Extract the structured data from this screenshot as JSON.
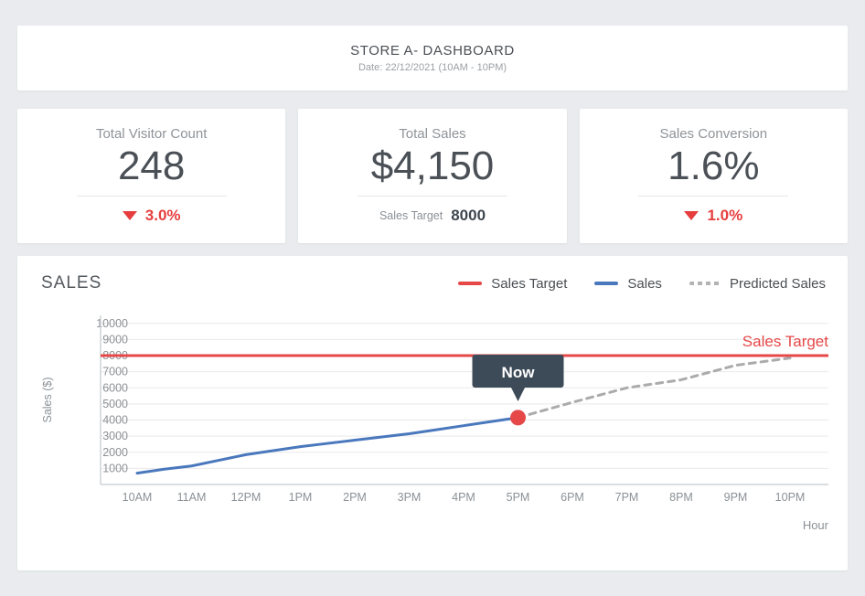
{
  "header": {
    "title": "STORE A- DASHBOARD",
    "date": "Date: 22/12/2021 (10AM - 10PM)"
  },
  "kpis": [
    {
      "label": "Total Visitor Count",
      "value": "248",
      "delta": "3.0%",
      "delta_direction": "down"
    },
    {
      "label": "Total Sales",
      "value": "$4,150",
      "target_label": "Sales Target",
      "target_value": "8000"
    },
    {
      "label": "Sales Conversion",
      "value": "1.6%",
      "delta": "1.0%",
      "delta_direction": "down"
    }
  ],
  "chart": {
    "title": "SALES",
    "legend": [
      {
        "label": "Sales Target",
        "color": "#e64848",
        "style": "solid"
      },
      {
        "label": "Sales",
        "color": "#4a78bd",
        "style": "solid"
      },
      {
        "label": "Predicted Sales",
        "color": "#b3b3b3",
        "style": "dashed"
      }
    ]
  },
  "chart_data": {
    "type": "line",
    "title": "SALES",
    "xlabel": "Hour",
    "ylabel": "Sales ($)",
    "x_tick_labels": [
      "10AM",
      "11AM",
      "12PM",
      "1PM",
      "2PM",
      "3PM",
      "4PM",
      "5PM",
      "6PM",
      "7PM",
      "8PM",
      "9PM",
      "10PM"
    ],
    "y_ticks": [
      1000,
      2000,
      3000,
      4000,
      5000,
      6000,
      7000,
      8000,
      9000,
      10000
    ],
    "ylim": [
      0,
      10500
    ],
    "grid": "horizontal",
    "legend_position": "top-right",
    "annotations": {
      "target_label": "Sales Target",
      "now_label": "Now",
      "now_x": 7,
      "now_y": 4150
    },
    "series": [
      {
        "name": "Sales Target",
        "type": "hline",
        "color": "#e64848",
        "value": 8000
      },
      {
        "name": "Sales",
        "type": "line",
        "color": "#4a78bd",
        "dashed": false,
        "x": [
          0,
          0.5,
          1,
          1.5,
          2,
          2.5,
          3,
          3.5,
          4,
          4.5,
          5,
          5.5,
          6,
          6.5,
          7
        ],
        "values": [
          700,
          950,
          1150,
          1500,
          1850,
          2100,
          2350,
          2550,
          2750,
          2950,
          3150,
          3400,
          3650,
          3900,
          4150
        ]
      },
      {
        "name": "Predicted Sales",
        "type": "line",
        "color": "#ababab",
        "dashed": true,
        "x": [
          7,
          8,
          9,
          10,
          11,
          12
        ],
        "values": [
          4150,
          5100,
          6000,
          6500,
          7400,
          7850
        ]
      }
    ]
  },
  "colors": {
    "accent_red": "#e64848",
    "sales_blue": "#4a78bd",
    "predicted_gray": "#ababab",
    "tooltip_bg": "#3d4a57",
    "page_bg": "#e9ebee"
  }
}
